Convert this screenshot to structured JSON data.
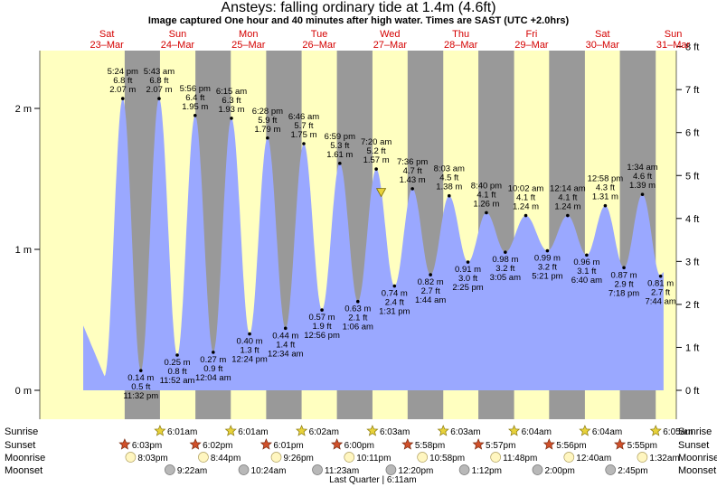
{
  "title": "Ansteys: falling  ordinary tide at 1.4m (4.6ft)",
  "subtitle": "Image captured One hour and 40 minutes after high water. Times are SAST (UTC +2.0hrs)",
  "days": [
    {
      "dow": "Sat",
      "date": "23–Mar"
    },
    {
      "dow": "Sun",
      "date": "24–Mar"
    },
    {
      "dow": "Mon",
      "date": "25–Mar"
    },
    {
      "dow": "Tue",
      "date": "26–Mar"
    },
    {
      "dow": "Wed",
      "date": "27–Mar"
    },
    {
      "dow": "Thu",
      "date": "28–Mar"
    },
    {
      "dow": "Fri",
      "date": "29–Mar"
    },
    {
      "dow": "Sat",
      "date": "30–Mar"
    },
    {
      "dow": "Sun",
      "date": "31–Mar"
    }
  ],
  "chart_data": {
    "type": "area",
    "ylabel_left": "m",
    "ylabel_right": "ft",
    "ylim_m": [
      -0.1,
      2.45
    ],
    "yticks_m": [
      "0 m",
      "1 m",
      "2 m"
    ],
    "yticks_ft": [
      "0 ft",
      "1 ft",
      "2 ft",
      "3 ft",
      "4 ft",
      "5 ft",
      "6 ft",
      "7 ft",
      "8 ft"
    ],
    "x_unit": "hours from midnight 23-Mar (SAST)",
    "tides": [
      {
        "type": "high",
        "hours": 17.4,
        "m": 2.07,
        "labels": [
          "5:24 pm",
          "6.8 ft",
          "2.07 m"
        ]
      },
      {
        "type": "low",
        "hours": 23.53,
        "m": 0.14,
        "labels": [
          "0.14 m",
          "0.5 ft",
          "11:32 pm"
        ]
      },
      {
        "type": "high",
        "hours": 29.72,
        "m": 2.07,
        "labels": [
          "5:43 am",
          "6.8 ft",
          "2.07 m"
        ]
      },
      {
        "type": "low",
        "hours": 35.87,
        "m": 0.25,
        "labels": [
          "0.25 m",
          "0.8 ft",
          "11:52 am"
        ]
      },
      {
        "type": "high",
        "hours": 41.93,
        "m": 1.95,
        "labels": [
          "5:56 pm",
          "6.4 ft",
          "1.95 m"
        ]
      },
      {
        "type": "low",
        "hours": 48.07,
        "m": 0.27,
        "labels": [
          "0.27 m",
          "0.9 ft",
          "12:04 am"
        ]
      },
      {
        "type": "high",
        "hours": 54.25,
        "m": 1.93,
        "labels": [
          "6:15 am",
          "6.3 ft",
          "1.93 m"
        ]
      },
      {
        "type": "low",
        "hours": 60.4,
        "m": 0.4,
        "labels": [
          "0.40 m",
          "1.3 ft",
          "12:24 pm"
        ]
      },
      {
        "type": "high",
        "hours": 66.47,
        "m": 1.79,
        "labels": [
          "6:28 pm",
          "5.9 ft",
          "1.79 m"
        ]
      },
      {
        "type": "low",
        "hours": 72.57,
        "m": 0.44,
        "labels": [
          "0.44 m",
          "1.4 ft",
          "12:34 am"
        ]
      },
      {
        "type": "high",
        "hours": 78.77,
        "m": 1.75,
        "labels": [
          "6:46 am",
          "5.7 ft",
          "1.75 m"
        ]
      },
      {
        "type": "low",
        "hours": 84.93,
        "m": 0.57,
        "labels": [
          "0.57 m",
          "1.9 ft",
          "12:56 pm"
        ]
      },
      {
        "type": "high",
        "hours": 90.98,
        "m": 1.61,
        "labels": [
          "6:59 pm",
          "5.3 ft",
          "1.61 m"
        ]
      },
      {
        "type": "low",
        "hours": 97.1,
        "m": 0.63,
        "labels": [
          "0.63 m",
          "2.1 ft",
          "1:06 am"
        ]
      },
      {
        "type": "high",
        "hours": 103.33,
        "m": 1.57,
        "labels": [
          "7:20 am",
          "5.2 ft",
          "1.57 m"
        ]
      },
      {
        "type": "low",
        "hours": 109.52,
        "m": 0.74,
        "labels": [
          "0.74 m",
          "2.4 ft",
          "1:31 pm"
        ]
      },
      {
        "type": "high",
        "hours": 115.6,
        "m": 1.43,
        "labels": [
          "7:36 pm",
          "4.7 ft",
          "1.43 m"
        ]
      },
      {
        "type": "low",
        "hours": 121.73,
        "m": 0.82,
        "labels": [
          "0.82 m",
          "2.7 ft",
          "1:44 am"
        ]
      },
      {
        "type": "high",
        "hours": 128.05,
        "m": 1.38,
        "labels": [
          "8:03 am",
          "4.5 ft",
          "1.38 m"
        ]
      },
      {
        "type": "low",
        "hours": 134.42,
        "m": 0.91,
        "labels": [
          "0.91 m",
          "3.0 ft",
          "2:25 pm"
        ]
      },
      {
        "type": "high",
        "hours": 140.67,
        "m": 1.26,
        "labels": [
          "8:40 pm",
          "4.1 ft",
          "1.26 m"
        ]
      },
      {
        "type": "low",
        "hours": 147.08,
        "m": 0.98,
        "labels": [
          "0.98 m",
          "3.2 ft",
          "3:05 am"
        ]
      },
      {
        "type": "high",
        "hours": 154.03,
        "m": 1.24,
        "labels": [
          "10:02 am",
          "4.1 ft",
          "1.24 m"
        ]
      },
      {
        "type": "low",
        "hours": 161.35,
        "m": 0.99,
        "labels": [
          "0.99 m",
          "3.2 ft",
          "5:21 pm"
        ]
      },
      {
        "type": "high",
        "hours": 168.23,
        "m": 1.24,
        "labels": [
          "12:14 am",
          "4.1 ft",
          "1.24 m"
        ]
      },
      {
        "type": "low",
        "hours": 174.67,
        "m": 0.96,
        "labels": [
          "0.96 m",
          "3.1 ft",
          "6:40 am"
        ]
      },
      {
        "type": "high",
        "hours": 180.97,
        "m": 1.31,
        "labels": [
          "12:58 pm",
          "4.3 ft",
          "1.31 m"
        ]
      },
      {
        "type": "low",
        "hours": 187.3,
        "m": 0.87,
        "labels": [
          "0.87 m",
          "2.9 ft",
          "7:18 pm"
        ]
      },
      {
        "type": "high",
        "hours": 193.57,
        "m": 1.39,
        "labels": [
          "1:34 am",
          "4.6 ft",
          "1.39 m"
        ]
      },
      {
        "type": "low",
        "hours": 199.73,
        "m": 0.81,
        "labels": [
          "0.81 m",
          "2.7 ft",
          "7:44 am"
        ]
      }
    ],
    "now": {
      "hours": 105.0,
      "m": 1.4
    }
  },
  "rows": {
    "sunrise_label": "Sunrise",
    "sunset_label": "Sunset",
    "moonrise_label": "Moonrise",
    "moonset_label": "Moonset"
  },
  "sunrise": [
    {
      "hours": 30.02,
      "text": "6:01am"
    },
    {
      "hours": 54.02,
      "text": "6:01am"
    },
    {
      "hours": 78.03,
      "text": "6:02am"
    },
    {
      "hours": 102.05,
      "text": "6:03am"
    },
    {
      "hours": 126.05,
      "text": "6:03am"
    },
    {
      "hours": 150.07,
      "text": "6:04am"
    },
    {
      "hours": 174.07,
      "text": "6:04am"
    },
    {
      "hours": 198.08,
      "text": "6:05am"
    }
  ],
  "sunset": [
    {
      "hours": 18.05,
      "text": "6:03pm"
    },
    {
      "hours": 42.03,
      "text": "6:02pm"
    },
    {
      "hours": 66.02,
      "text": "6:01pm"
    },
    {
      "hours": 90.0,
      "text": "6:00pm"
    },
    {
      "hours": 113.97,
      "text": "5:58pm"
    },
    {
      "hours": 137.95,
      "text": "5:57pm"
    },
    {
      "hours": 161.93,
      "text": "5:56pm"
    },
    {
      "hours": 185.92,
      "text": "5:55pm"
    }
  ],
  "moonrise": [
    {
      "hours": 20.05,
      "text": "8:03pm"
    },
    {
      "hours": 44.73,
      "text": "8:44pm"
    },
    {
      "hours": 69.43,
      "text": "9:26pm"
    },
    {
      "hours": 94.18,
      "text": "10:11pm"
    },
    {
      "hours": 118.97,
      "text": "10:58pm"
    },
    {
      "hours": 143.8,
      "text": "11:48pm"
    },
    {
      "hours": 168.67,
      "text": "12:40am"
    },
    {
      "hours": 193.53,
      "text": "1:32am"
    }
  ],
  "moonset": [
    {
      "hours": 33.37,
      "text": "9:22am"
    },
    {
      "hours": 58.4,
      "text": "10:24am"
    },
    {
      "hours": 83.38,
      "text": "11:23am"
    },
    {
      "hours": 108.33,
      "text": "12:20pm"
    },
    {
      "hours": 133.2,
      "text": "1:12pm"
    },
    {
      "hours": 158.0,
      "text": "2:00pm"
    },
    {
      "hours": 182.75,
      "text": "2:45pm"
    }
  ],
  "moon_phase": {
    "hours": 102.18,
    "text": "Last Quarter | 6:11am"
  },
  "colors": {
    "day_bg": "#ffffc0",
    "night_bg": "#999999",
    "tide_fill": "#9aa8ff",
    "day_label": "#d40000",
    "sun_icon": "#e8d23a",
    "sunset_icon": "#d0502a",
    "moonrise_icon": "#fff6c0",
    "moonset_icon": "#b8b8b8"
  }
}
